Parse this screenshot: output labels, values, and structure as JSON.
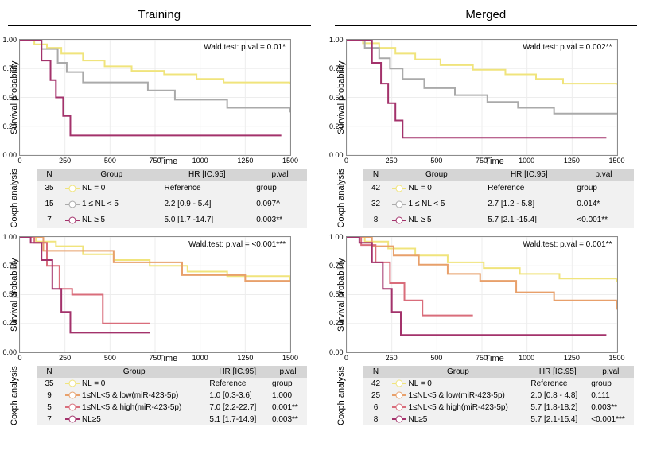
{
  "columns": {
    "left": "Training",
    "right": "Merged"
  },
  "axis": {
    "ylabel": "Survival probability",
    "xlabel": "Time",
    "coxlabel": "Coxph analysis",
    "xlim": [
      0,
      1500
    ],
    "xticks": [
      0,
      250,
      500,
      750,
      1000,
      1250,
      1500
    ],
    "ylim": [
      0,
      1
    ],
    "yticks": [
      0.0,
      0.25,
      0.5,
      0.75,
      1.0
    ]
  },
  "colors": {
    "yellow": "#f0e47c",
    "grey": "#aaaaaa",
    "magenta": "#a3326b",
    "orange": "#e8a06b",
    "rose": "#d96d7b",
    "grid": "#ededed",
    "panel_border": "#8c8c8c",
    "table_header": "#d5d5d5",
    "table_row": "#f1f1f1"
  },
  "panels": [
    {
      "id": "top-left",
      "wald": "Wald.test: p.val = 0.01*",
      "series": [
        {
          "key": "NL = 0",
          "color": "#f0e47c",
          "points": [
            [
              0,
              1.0
            ],
            [
              80,
              0.96
            ],
            [
              150,
              0.93
            ],
            [
              230,
              0.88
            ],
            [
              350,
              0.82
            ],
            [
              470,
              0.77
            ],
            [
              620,
              0.73
            ],
            [
              800,
              0.7
            ],
            [
              980,
              0.66
            ],
            [
              1130,
              0.63
            ],
            [
              1500,
              0.62
            ]
          ]
        },
        {
          "key": "1 ≤ NL < 5",
          "color": "#aaaaaa",
          "points": [
            [
              0,
              1.0
            ],
            [
              120,
              0.92
            ],
            [
              210,
              0.8
            ],
            [
              260,
              0.72
            ],
            [
              350,
              0.63
            ],
            [
              530,
              0.63
            ],
            [
              710,
              0.56
            ],
            [
              860,
              0.48
            ],
            [
              1000,
              0.48
            ],
            [
              1150,
              0.41
            ],
            [
              1500,
              0.37
            ]
          ]
        },
        {
          "key": "NL ≥ 5",
          "color": "#a3326b",
          "points": [
            [
              0,
              1.0
            ],
            [
              60,
              1.0
            ],
            [
              120,
              0.82
            ],
            [
              170,
              0.65
            ],
            [
              200,
              0.5
            ],
            [
              240,
              0.34
            ],
            [
              280,
              0.17
            ],
            [
              1450,
              0.17
            ]
          ]
        }
      ],
      "table": {
        "headers": [
          "N",
          "Group",
          "HR [IC.95]",
          "p.val"
        ],
        "rows": [
          {
            "n": 35,
            "swatch": "#f0e47c",
            "group": "NL = 0",
            "hr": "Reference",
            "pval": "group"
          },
          {
            "n": 15,
            "swatch": "#aaaaaa",
            "group": "1 ≤ NL < 5",
            "hr": "2.2 [0.9 - 5.4]",
            "pval": "0.097^"
          },
          {
            "n": 7,
            "swatch": "#a3326b",
            "group": "NL ≥ 5",
            "hr": "5.0 [1.7 -14.7]",
            "pval": "0.003**"
          }
        ]
      }
    },
    {
      "id": "top-right",
      "wald": "Wald.test: p.val = 0.002**",
      "series": [
        {
          "key": "NL = 0",
          "color": "#f0e47c",
          "points": [
            [
              0,
              1.0
            ],
            [
              90,
              0.97
            ],
            [
              180,
              0.93
            ],
            [
              270,
              0.88
            ],
            [
              380,
              0.83
            ],
            [
              520,
              0.78
            ],
            [
              700,
              0.74
            ],
            [
              880,
              0.7
            ],
            [
              1050,
              0.66
            ],
            [
              1200,
              0.62
            ],
            [
              1500,
              0.61
            ]
          ]
        },
        {
          "key": "1 ≤ NL < 5",
          "color": "#aaaaaa",
          "points": [
            [
              0,
              1.0
            ],
            [
              100,
              0.93
            ],
            [
              180,
              0.84
            ],
            [
              240,
              0.75
            ],
            [
              310,
              0.66
            ],
            [
              430,
              0.58
            ],
            [
              600,
              0.52
            ],
            [
              780,
              0.46
            ],
            [
              950,
              0.41
            ],
            [
              1150,
              0.36
            ],
            [
              1500,
              0.36
            ]
          ]
        },
        {
          "key": "NL ≥ 5",
          "color": "#a3326b",
          "points": [
            [
              0,
              1.0
            ],
            [
              70,
              1.0
            ],
            [
              140,
              0.8
            ],
            [
              190,
              0.62
            ],
            [
              230,
              0.45
            ],
            [
              270,
              0.3
            ],
            [
              310,
              0.15
            ],
            [
              1440,
              0.15
            ]
          ]
        }
      ],
      "table": {
        "headers": [
          "N",
          "Group",
          "HR [IC.95]",
          "p.val"
        ],
        "rows": [
          {
            "n": 42,
            "swatch": "#f0e47c",
            "group": "NL = 0",
            "hr": "Reference",
            "pval": "group"
          },
          {
            "n": 32,
            "swatch": "#aaaaaa",
            "group": "1 ≤ NL < 5",
            "hr": "2.7 [1.2 - 5.8]",
            "pval": "0.014*"
          },
          {
            "n": 8,
            "swatch": "#a3326b",
            "group": "NL ≥ 5",
            "hr": "5.7 [2.1 -15.4]",
            "pval": "<0.001**"
          }
        ]
      }
    },
    {
      "id": "bot-left",
      "wald": "Wald.test: p.val = <0.001***",
      "series": [
        {
          "key": "NL = 0",
          "color": "#f0e47c",
          "points": [
            [
              0,
              1.0
            ],
            [
              90,
              0.96
            ],
            [
              200,
              0.92
            ],
            [
              350,
              0.85
            ],
            [
              520,
              0.8
            ],
            [
              720,
              0.75
            ],
            [
              930,
              0.7
            ],
            [
              1150,
              0.66
            ],
            [
              1500,
              0.62
            ]
          ]
        },
        {
          "key": "1≤NL<5 & low(miR-423-5p)",
          "color": "#e8a06b",
          "points": [
            [
              0,
              1.0
            ],
            [
              130,
              0.88
            ],
            [
              230,
              0.88
            ],
            [
              350,
              0.88
            ],
            [
              520,
              0.78
            ],
            [
              720,
              0.78
            ],
            [
              900,
              0.67
            ],
            [
              1050,
              0.67
            ],
            [
              1250,
              0.62
            ],
            [
              1500,
              0.62
            ]
          ]
        },
        {
          "key": "1≤NL<5 & high(miR-423-5p)",
          "color": "#d96d7b",
          "points": [
            [
              0,
              1.0
            ],
            [
              80,
              0.95
            ],
            [
              150,
              0.75
            ],
            [
              220,
              0.55
            ],
            [
              290,
              0.5
            ],
            [
              370,
              0.5
            ],
            [
              460,
              0.25
            ],
            [
              720,
              0.25
            ]
          ]
        },
        {
          "key": "NL≥5",
          "color": "#a3326b",
          "points": [
            [
              0,
              1.0
            ],
            [
              60,
              0.95
            ],
            [
              120,
              0.8
            ],
            [
              180,
              0.55
            ],
            [
              230,
              0.35
            ],
            [
              280,
              0.17
            ],
            [
              720,
              0.17
            ]
          ]
        }
      ],
      "table": {
        "headers": [
          "N",
          "Group",
          "HR [IC.95]",
          "p.val"
        ],
        "rows": [
          {
            "n": 35,
            "swatch": "#f0e47c",
            "group": "NL = 0",
            "hr": "Reference",
            "pval": "group"
          },
          {
            "n": 9,
            "swatch": "#e8a06b",
            "group": "1≤NL<5 & low(miR-423-5p)",
            "hr": "1.0 [0.3-3.6]",
            "pval": "1.000"
          },
          {
            "n": 5,
            "swatch": "#d96d7b",
            "group": "1≤NL<5 & high(miR-423-5p)",
            "hr": "7.0 [2.2-22.7]",
            "pval": "0.001**"
          },
          {
            "n": 7,
            "swatch": "#a3326b",
            "group": "NL≥5",
            "hr": "5.1 [1.7-14.9]",
            "pval": "0.003**"
          }
        ]
      }
    },
    {
      "id": "bot-right",
      "wald": "Wald.test: p.val = 0.001**",
      "series": [
        {
          "key": "NL = 0",
          "color": "#f0e47c",
          "points": [
            [
              0,
              1.0
            ],
            [
              100,
              0.96
            ],
            [
              230,
              0.9
            ],
            [
              380,
              0.84
            ],
            [
              560,
              0.78
            ],
            [
              760,
              0.73
            ],
            [
              960,
              0.68
            ],
            [
              1180,
              0.64
            ],
            [
              1500,
              0.61
            ]
          ]
        },
        {
          "key": "1≤NL<5 & low(miR-423-5p)",
          "color": "#e8a06b",
          "points": [
            [
              0,
              1.0
            ],
            [
              140,
              0.92
            ],
            [
              260,
              0.84
            ],
            [
              400,
              0.76
            ],
            [
              560,
              0.68
            ],
            [
              740,
              0.62
            ],
            [
              940,
              0.52
            ],
            [
              1150,
              0.45
            ],
            [
              1500,
              0.37
            ]
          ]
        },
        {
          "key": "1≤NL<5 & high(miR-423-5p)",
          "color": "#d96d7b",
          "points": [
            [
              0,
              1.0
            ],
            [
              80,
              0.93
            ],
            [
              160,
              0.78
            ],
            [
              240,
              0.6
            ],
            [
              320,
              0.45
            ],
            [
              420,
              0.32
            ],
            [
              700,
              0.32
            ]
          ]
        },
        {
          "key": "NL≥5",
          "color": "#a3326b",
          "points": [
            [
              0,
              1.0
            ],
            [
              70,
              0.95
            ],
            [
              140,
              0.78
            ],
            [
              200,
              0.55
            ],
            [
              250,
              0.35
            ],
            [
              300,
              0.15
            ],
            [
              1440,
              0.15
            ]
          ]
        }
      ],
      "table": {
        "headers": [
          "N",
          "Group",
          "HR [IC.95]",
          "p.val"
        ],
        "rows": [
          {
            "n": 42,
            "swatch": "#f0e47c",
            "group": "NL = 0",
            "hr": "Reference",
            "pval": "group"
          },
          {
            "n": 25,
            "swatch": "#e8a06b",
            "group": "1≤NL<5 & low(miR-423-5p)",
            "hr": "2.0 [0.8 - 4.8]",
            "pval": "0.111"
          },
          {
            "n": 6,
            "swatch": "#d96d7b",
            "group": "1≤NL<5 & high(miR-423-5p)",
            "hr": "5.7 [1.8-18.2]",
            "pval": "0.003**"
          },
          {
            "n": 8,
            "swatch": "#a3326b",
            "group": "NL≥5",
            "hr": "5.7 [2.1-15.4]",
            "pval": "<0.001***"
          }
        ]
      }
    }
  ]
}
